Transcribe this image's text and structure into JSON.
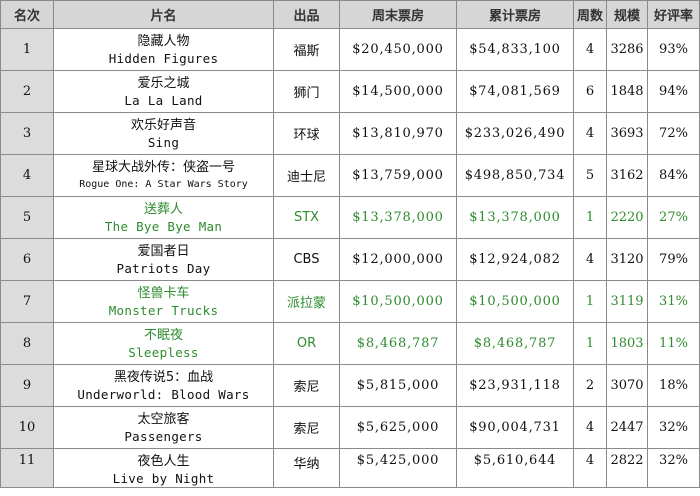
{
  "colors": {
    "new_release": "#2e8b2e",
    "header_bg": "#d6d6d6",
    "rank_bg": "#dcdcdc"
  },
  "headers": [
    "名次",
    "片名",
    "出品",
    "周末票房",
    "累计票房",
    "周数",
    "规模",
    "好评率"
  ],
  "rows": [
    {
      "rank": "1",
      "title_cn": "隐藏人物",
      "title_en": "Hidden Figures",
      "distributor": "福斯",
      "weekend": "$20,450,000",
      "cumulative": "$54,833,100",
      "weeks": "4",
      "theaters": "3286",
      "rating": "93%",
      "new": false
    },
    {
      "rank": "2",
      "title_cn": "爱乐之城",
      "title_en": "La La Land",
      "distributor": "狮门",
      "weekend": "$14,500,000",
      "cumulative": "$74,081,569",
      "weeks": "6",
      "theaters": "1848",
      "rating": "94%",
      "new": false
    },
    {
      "rank": "3",
      "title_cn": "欢乐好声音",
      "title_en": "Sing",
      "distributor": "环球",
      "weekend": "$13,810,970",
      "cumulative": "$233,026,490",
      "weeks": "4",
      "theaters": "3693",
      "rating": "72%",
      "new": false
    },
    {
      "rank": "4",
      "title_cn": "星球大战外传：侠盗一号",
      "title_en": "Rogue One: A Star Wars Story",
      "distributor": "迪士尼",
      "weekend": "$13,759,000",
      "cumulative": "$498,850,734",
      "weeks": "5",
      "theaters": "3162",
      "rating": "84%",
      "new": false
    },
    {
      "rank": "5",
      "title_cn": "送葬人",
      "title_en": "The Bye Bye Man",
      "distributor": "STX",
      "weekend": "$13,378,000",
      "cumulative": "$13,378,000",
      "weeks": "1",
      "theaters": "2220",
      "rating": "27%",
      "new": true
    },
    {
      "rank": "6",
      "title_cn": "爱国者日",
      "title_en": "Patriots Day",
      "distributor": "CBS",
      "weekend": "$12,000,000",
      "cumulative": "$12,924,082",
      "weeks": "4",
      "theaters": "3120",
      "rating": "79%",
      "new": false
    },
    {
      "rank": "7",
      "title_cn": "怪兽卡车",
      "title_en": "Monster Trucks",
      "distributor": "派拉蒙",
      "weekend": "$10,500,000",
      "cumulative": "$10,500,000",
      "weeks": "1",
      "theaters": "3119",
      "rating": "31%",
      "new": true
    },
    {
      "rank": "8",
      "title_cn": "不眠夜",
      "title_en": "Sleepless",
      "distributor": "OR",
      "weekend": "$8,468,787",
      "cumulative": "$8,468,787",
      "weeks": "1",
      "theaters": "1803",
      "rating": "11%",
      "new": true
    },
    {
      "rank": "9",
      "title_cn": "黑夜传说5：血战",
      "title_en": "Underworld: Blood Wars",
      "distributor": "索尼",
      "weekend": "$5,815,000",
      "cumulative": "$23,931,118",
      "weeks": "2",
      "theaters": "3070",
      "rating": "18%",
      "new": false
    },
    {
      "rank": "10",
      "title_cn": "太空旅客",
      "title_en": "Passengers",
      "distributor": "索尼",
      "weekend": "$5,625,000",
      "cumulative": "$90,004,731",
      "weeks": "4",
      "theaters": "2447",
      "rating": "32%",
      "new": false
    },
    {
      "rank": "11",
      "title_cn": "夜色人生",
      "title_en": "Live by Night",
      "distributor": "华纳",
      "weekend": "$5,425,000",
      "cumulative": "$5,610,644",
      "weeks": "4",
      "theaters": "2822",
      "rating": "32%",
      "new": false
    }
  ]
}
